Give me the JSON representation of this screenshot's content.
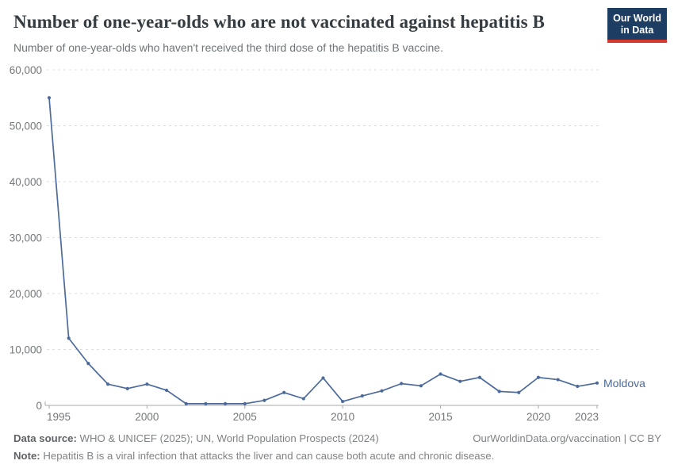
{
  "header": {
    "title": "Number of one-year-olds who are not vaccinated against hepatitis B",
    "subtitle": "Number of one-year-olds who haven't received the third dose of the hepatitis B vaccine.",
    "logo": {
      "line1": "Our World",
      "line2": "in Data"
    }
  },
  "chart_data": {
    "type": "line",
    "title": "Number of one-year-olds who are not vaccinated against hepatitis B",
    "xlabel": "",
    "ylabel": "",
    "x": [
      1995,
      1996,
      1997,
      1998,
      1999,
      2000,
      2001,
      2002,
      2003,
      2004,
      2005,
      2006,
      2007,
      2008,
      2009,
      2010,
      2011,
      2012,
      2013,
      2014,
      2015,
      2016,
      2017,
      2018,
      2019,
      2020,
      2021,
      2022,
      2023
    ],
    "series": [
      {
        "name": "Moldova",
        "values": [
          55000,
          12000,
          7500,
          3800,
          3000,
          3800,
          2700,
          300,
          300,
          300,
          300,
          900,
          2300,
          1200,
          4900,
          700,
          1700,
          2600,
          3900,
          3500,
          5600,
          4300,
          5000,
          2500,
          2300,
          5000,
          4600,
          3400,
          4000
        ]
      }
    ],
    "x_ticks": [
      1995,
      2000,
      2005,
      2010,
      2015,
      2020,
      2023
    ],
    "y_ticks": [
      0,
      10000,
      20000,
      30000,
      40000,
      50000,
      60000
    ],
    "xlim": [
      1995,
      2023
    ],
    "ylim": [
      0,
      60000
    ],
    "grid": true,
    "legend_position": "end-of-line",
    "entity_label": "Moldova"
  },
  "colors": {
    "line": "#4C6A9C",
    "gridline": "#dcdcdc",
    "axis": "#a8a8a8",
    "tick_label": "#74787b",
    "logo_bg": "#1d3d63",
    "logo_red": "#d7382e"
  },
  "footer": {
    "source_label": "Data source:",
    "source_text": " WHO & UNICEF (2025); UN, World Population Prospects (2024)",
    "link_text": "OurWorldinData.org/vaccination | CC BY",
    "note_label": "Note:",
    "note_text": " Hepatitis B is a viral infection that attacks the liver and can cause both acute and chronic disease."
  }
}
